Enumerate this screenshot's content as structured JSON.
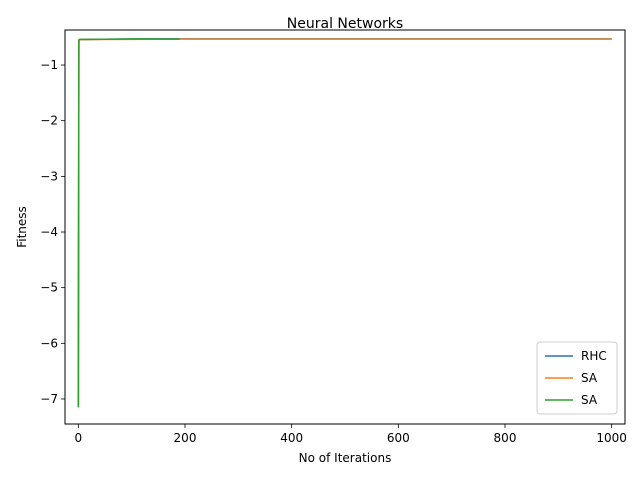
{
  "chart_data": {
    "type": "line",
    "title": "Neural Networks",
    "xlabel": "No of Iterations",
    "ylabel": "Fitness",
    "xlim": [
      -25,
      1025
    ],
    "ylim": [
      -7.45,
      -0.37
    ],
    "xticks": [
      0,
      200,
      400,
      600,
      800,
      1000
    ],
    "xtick_labels": [
      "0",
      "200",
      "400",
      "600",
      "800",
      "1000"
    ],
    "yticks": [
      -1,
      -2,
      -3,
      -4,
      -5,
      -6,
      -7
    ],
    "ytick_labels": [
      "−1",
      "−2",
      "−3",
      "−4",
      "−5",
      "−6",
      "−7"
    ],
    "grid": false,
    "legend_position": "lower-right",
    "series": [
      {
        "name": "RHC",
        "color": "#1f77b4",
        "x": [
          0,
          1,
          2,
          110,
          1000
        ],
        "y": [
          -7.15,
          -0.55,
          -0.54,
          -0.53,
          -0.53
        ]
      },
      {
        "name": "SA",
        "color": "#ff7f0e",
        "x": [
          0,
          1,
          2,
          190,
          1000
        ],
        "y": [
          -7.15,
          -0.55,
          -0.54,
          -0.535,
          -0.535
        ]
      },
      {
        "name": "SA",
        "color": "#2ca02c",
        "x": [
          0,
          1,
          2,
          110,
          190
        ],
        "y": [
          -7.15,
          -0.55,
          -0.54,
          -0.53,
          -0.535
        ]
      }
    ]
  }
}
